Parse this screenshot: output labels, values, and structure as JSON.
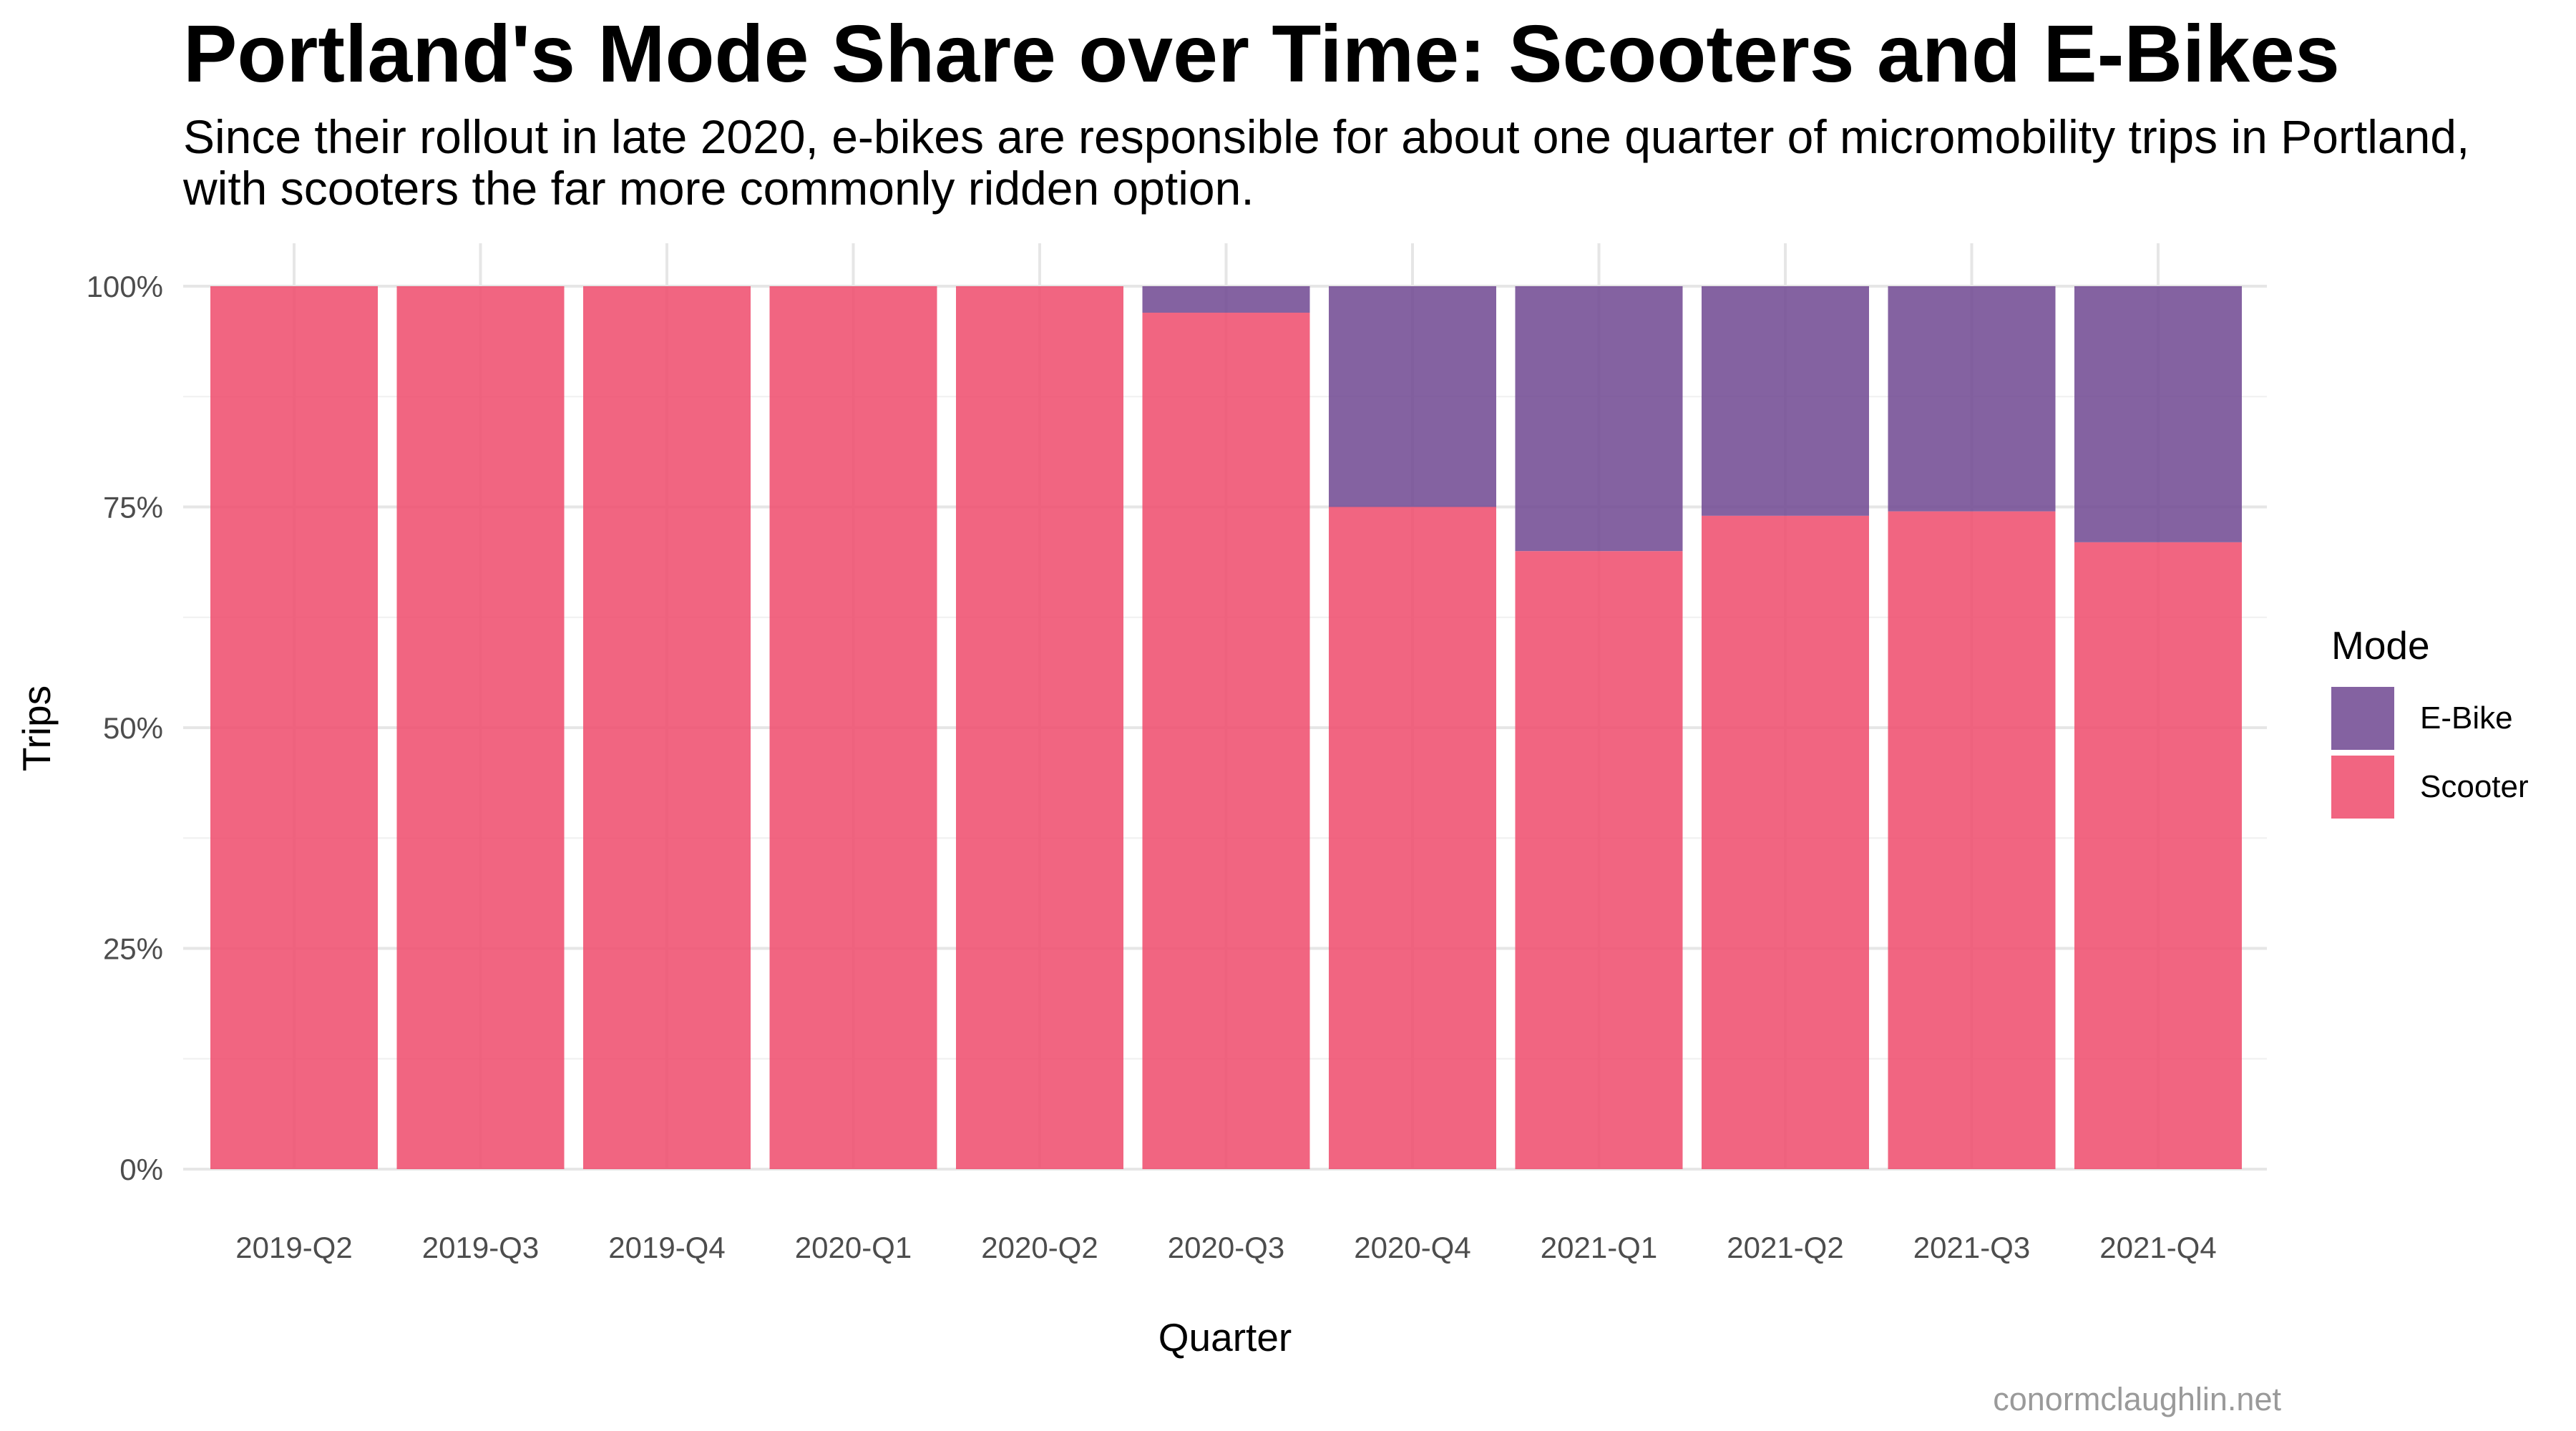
{
  "title": "Portland's Mode Share over Time: Scooters and E-Bikes",
  "subtitle": "Since their rollout in late 2020, e-bikes are responsible for about one quarter of micromobility trips in Portland, with scooters the far more commonly ridden option.",
  "caption": "conormclaughlin.net",
  "legend": {
    "title": "Mode",
    "items": [
      {
        "label": "E-Bike",
        "color": "#6f4690"
      },
      {
        "label": "Scooter",
        "color": "#ee4a6b"
      }
    ]
  },
  "chart_data": {
    "type": "bar",
    "stacked": true,
    "position": "fill",
    "title": "Portland's Mode Share over Time: Scooters and E-Bikes",
    "xlabel": "Quarter",
    "ylabel": "Trips",
    "ylim": [
      0,
      1
    ],
    "yticks": [
      0,
      0.25,
      0.5,
      0.75,
      1.0
    ],
    "ytick_labels": [
      "0%",
      "25%",
      "50%",
      "75%",
      "100%"
    ],
    "grid": true,
    "legend_position": "right",
    "categories": [
      "2019-Q2",
      "2019-Q3",
      "2019-Q4",
      "2020-Q1",
      "2020-Q2",
      "2020-Q3",
      "2020-Q4",
      "2021-Q1",
      "2021-Q2",
      "2021-Q3",
      "2021-Q4"
    ],
    "series": [
      {
        "name": "Scooter",
        "color": "#ee4a6b",
        "values": [
          1.0,
          1.0,
          1.0,
          1.0,
          1.0,
          0.97,
          0.75,
          0.7,
          0.74,
          0.745,
          0.71
        ]
      },
      {
        "name": "E-Bike",
        "color": "#6f4690",
        "values": [
          0.0,
          0.0,
          0.0,
          0.0,
          0.0,
          0.03,
          0.25,
          0.3,
          0.26,
          0.255,
          0.29
        ]
      }
    ]
  }
}
